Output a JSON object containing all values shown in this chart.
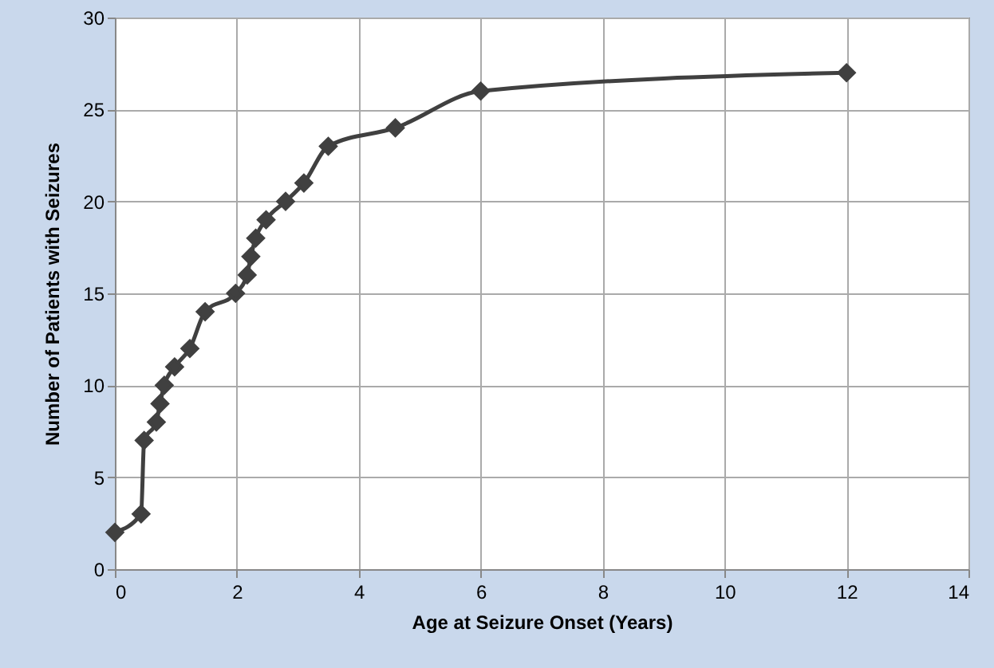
{
  "chart_data": {
    "type": "line",
    "xlabel": "Age at Seizure Onset  (Years)",
    "ylabel": "Number of Patients with Seizures",
    "x": [
      0,
      0.43,
      0.48,
      0.68,
      0.74,
      0.81,
      0.98,
      1.23,
      1.48,
      1.98,
      2.17,
      2.23,
      2.31,
      2.48,
      2.8,
      3.1,
      3.5,
      4.6,
      6,
      12
    ],
    "series": [
      {
        "color": "#404040",
        "values": [
          2,
          3,
          7,
          8,
          9,
          10,
          11,
          12,
          14,
          15,
          16,
          17,
          18,
          19,
          20,
          21,
          23,
          24,
          26,
          27
        ]
      }
    ],
    "xlim": [
      0,
      14
    ],
    "xticks": [
      0,
      2,
      4,
      6,
      8,
      10,
      12,
      14
    ],
    "ylim": [
      0,
      30
    ],
    "yticks": [
      0,
      5,
      10,
      15,
      20,
      25,
      30
    ],
    "grid": true,
    "marker": "diamond",
    "line_style": "solid"
  }
}
